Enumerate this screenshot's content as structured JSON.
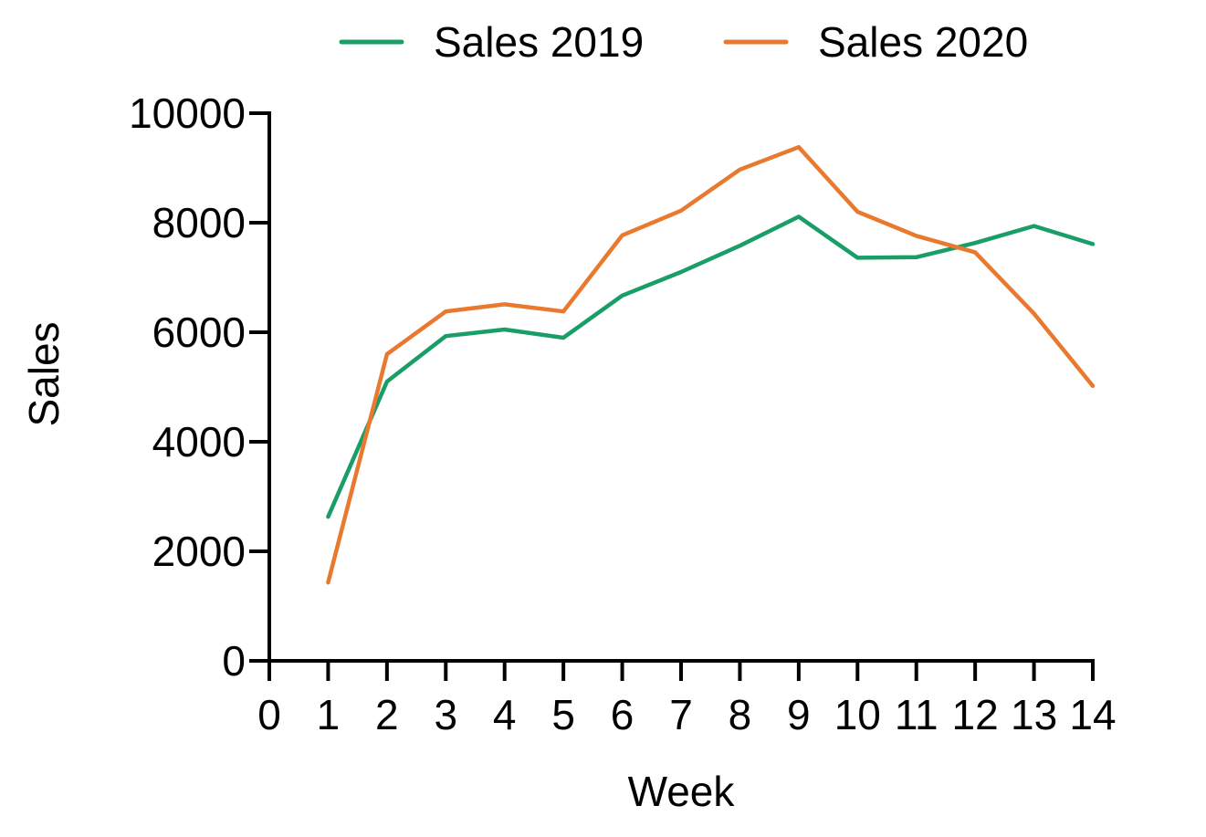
{
  "chart_data": {
    "type": "line",
    "title": "",
    "xlabel": "Week",
    "ylabel": "Sales",
    "xlim": [
      0,
      14
    ],
    "ylim": [
      0,
      10000
    ],
    "x_ticks": [
      "0",
      "1",
      "2",
      "3",
      "4",
      "5",
      "6",
      "7",
      "8",
      "9",
      "10",
      "11",
      "12",
      "13",
      "14"
    ],
    "y_ticks": [
      "0",
      "2000",
      "4000",
      "6000",
      "8000",
      "10000"
    ],
    "grid": false,
    "legend_position": "top",
    "x": [
      1,
      2,
      3,
      4,
      5,
      6,
      7,
      8,
      9,
      10,
      11,
      12,
      13,
      14
    ],
    "series": [
      {
        "name": "Sales 2019",
        "color": "#1a9e68",
        "values": [
          2630,
          5100,
          5930,
          6050,
          5900,
          6670,
          7100,
          7580,
          8110,
          7360,
          7370,
          7630,
          7940,
          7610
        ]
      },
      {
        "name": "Sales 2020",
        "color": "#e8792f",
        "values": [
          1430,
          5600,
          6380,
          6510,
          6380,
          7770,
          8220,
          8970,
          9380,
          8200,
          7760,
          7460,
          6340,
          5020
        ]
      }
    ]
  }
}
